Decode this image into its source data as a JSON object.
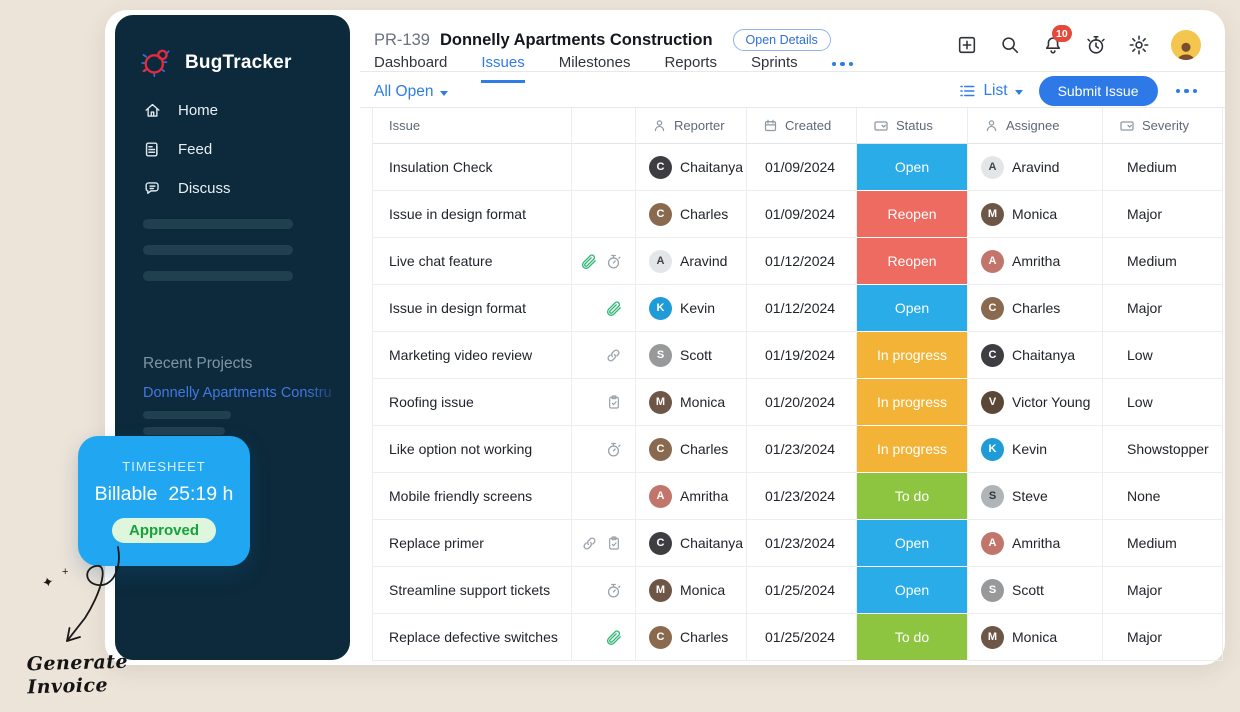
{
  "sidebar": {
    "brand": "BugTracker",
    "nav": [
      {
        "label": "Home",
        "icon": "home"
      },
      {
        "label": "Feed",
        "icon": "feed"
      },
      {
        "label": "Discuss",
        "icon": "discuss"
      }
    ],
    "recent_projects_label": "Recent Projects",
    "recent_project": "Donnelly Apartments Constru"
  },
  "header": {
    "project_id": "PR-139",
    "project_title": "Donnelly Apartments Construction",
    "open_details_label": "Open Details",
    "tabs": [
      "Dashboard",
      "Issues",
      "Milestones",
      "Reports",
      "Sprints"
    ],
    "active_tab": "Issues",
    "notification_count": "10",
    "topbar_icons": [
      "add",
      "search",
      "notifications",
      "timer",
      "settings"
    ]
  },
  "toolbar": {
    "filter_label": "All Open",
    "view_label": "List",
    "submit_label": "Submit Issue"
  },
  "table": {
    "columns": [
      {
        "label": "Issue",
        "icon": null
      },
      {
        "label": "",
        "icon": null
      },
      {
        "label": "Reporter",
        "icon": "person"
      },
      {
        "label": "Created",
        "icon": "calendar"
      },
      {
        "label": "Status",
        "icon": "select"
      },
      {
        "label": "Assignee",
        "icon": "person"
      },
      {
        "label": "Severity",
        "icon": "select"
      }
    ],
    "status_colors": {
      "Open": "#29ACE8",
      "Reopen": "#ED6B60",
      "In progress": "#F2B337",
      "To do": "#8DC540"
    },
    "rows": [
      {
        "issue": "Insulation Check",
        "icons": [],
        "reporter": {
          "name": "Chaitanya",
          "initial": "C",
          "color": "#3E3E42"
        },
        "created": "01/09/2024",
        "status": "Open",
        "assignee": {
          "name": "Aravind",
          "initial": "A",
          "color": "#E3E6E8",
          "fg": "#444"
        },
        "severity": "Medium"
      },
      {
        "issue": "Issue in design format",
        "icons": [],
        "reporter": {
          "name": "Charles",
          "initial": "C",
          "color": "#8A6A4F"
        },
        "created": "01/09/2024",
        "status": "Reopen",
        "assignee": {
          "name": "Monica",
          "initial": "M",
          "color": "#6E5647"
        },
        "severity": "Major"
      },
      {
        "issue": "Live chat feature",
        "icons": [
          "paperclip",
          "stopwatch"
        ],
        "reporter": {
          "name": "Aravind",
          "initial": "A",
          "color": "#E3E6E8",
          "fg": "#444"
        },
        "created": "01/12/2024",
        "status": "Reopen",
        "assignee": {
          "name": "Amritha",
          "initial": "A",
          "color": "#C2766B"
        },
        "severity": "Medium"
      },
      {
        "issue": "Issue in design format",
        "icons": [
          "paperclip"
        ],
        "reporter": {
          "name": "Kevin",
          "initial": "K",
          "color": "#1F9BD7"
        },
        "created": "01/12/2024",
        "status": "Open",
        "assignee": {
          "name": "Charles",
          "initial": "C",
          "color": "#8A6A4F"
        },
        "severity": "Major"
      },
      {
        "issue": "Marketing video review",
        "icons": [
          "link"
        ],
        "reporter": {
          "name": "Scott",
          "initial": "S",
          "color": "#98999B"
        },
        "created": "01/19/2024",
        "status": "In progress",
        "assignee": {
          "name": "Chaitanya",
          "initial": "C",
          "color": "#3E3E42"
        },
        "severity": "Low"
      },
      {
        "issue": "Roofing issue",
        "icons": [
          "clipboard"
        ],
        "reporter": {
          "name": "Monica",
          "initial": "M",
          "color": "#6E5647"
        },
        "created": "01/20/2024",
        "status": "In progress",
        "assignee": {
          "name": "Victor Young",
          "initial": "V",
          "color": "#5A4738"
        },
        "severity": "Low"
      },
      {
        "issue": "Like option not working",
        "icons": [
          "stopwatch"
        ],
        "reporter": {
          "name": "Charles",
          "initial": "C",
          "color": "#8A6A4F"
        },
        "created": "01/23/2024",
        "status": "In progress",
        "assignee": {
          "name": "Kevin",
          "initial": "K",
          "color": "#1F9BD7"
        },
        "severity": "Showstopper"
      },
      {
        "issue": "Mobile friendly screens",
        "icons": [],
        "reporter": {
          "name": "Amritha",
          "initial": "A",
          "color": "#C2766B"
        },
        "created": "01/23/2024",
        "status": "To do",
        "assignee": {
          "name": "Steve",
          "initial": "S",
          "color": "#AEB4B8",
          "fg": "#333"
        },
        "severity": "None"
      },
      {
        "issue": "Replace primer",
        "icons": [
          "link",
          "clipboard"
        ],
        "reporter": {
          "name": "Chaitanya",
          "initial": "C",
          "color": "#3E3E42"
        },
        "created": "01/23/2024",
        "status": "Open",
        "assignee": {
          "name": "Amritha",
          "initial": "A",
          "color": "#C2766B"
        },
        "severity": "Medium"
      },
      {
        "issue": "Streamline support tickets",
        "icons": [
          "stopwatch"
        ],
        "reporter": {
          "name": "Monica",
          "initial": "M",
          "color": "#6E5647"
        },
        "created": "01/25/2024",
        "status": "Open",
        "assignee": {
          "name": "Scott",
          "initial": "S",
          "color": "#98999B"
        },
        "severity": "Major"
      },
      {
        "issue": "Replace defective switches",
        "icons": [
          "paperclip"
        ],
        "reporter": {
          "name": "Charles",
          "initial": "C",
          "color": "#8A6A4F"
        },
        "created": "01/25/2024",
        "status": "To do",
        "assignee": {
          "name": "Monica",
          "initial": "M",
          "color": "#6E5647"
        },
        "severity": "Major"
      }
    ]
  },
  "timesheet": {
    "title": "TIMESHEET",
    "billable_label": "Billable",
    "hours": "25:19 h",
    "status": "Approved",
    "card_color": "#21A7F1"
  },
  "annotation": {
    "line1": "Generate",
    "line2": "Invoice"
  }
}
